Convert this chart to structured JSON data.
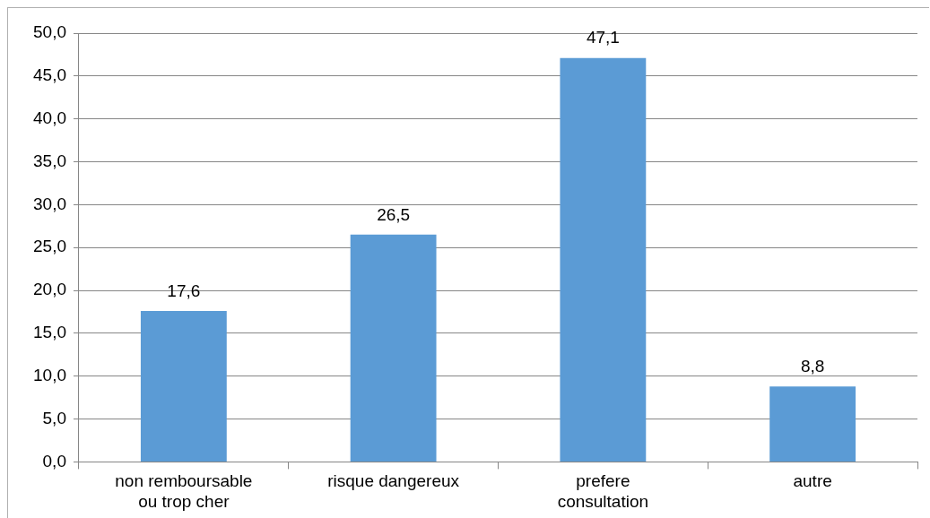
{
  "chart_data": {
    "type": "bar",
    "categories": [
      "non remboursable ou trop cher",
      "risque dangereux",
      "prefere consultation",
      "autre"
    ],
    "values": [
      17.6,
      26.5,
      47.1,
      8.8
    ],
    "value_labels": [
      "17,6",
      "26,5",
      "47,1",
      "8,8"
    ],
    "color": "#5b9bd5",
    "ylim": [
      0,
      50
    ],
    "yticks": [
      {
        "value": 0,
        "label": "0,0"
      },
      {
        "value": 5,
        "label": "5,0"
      },
      {
        "value": 10,
        "label": "10,0"
      },
      {
        "value": 15,
        "label": "15,0"
      },
      {
        "value": 20,
        "label": "20,0"
      },
      {
        "value": 25,
        "label": "25,0"
      },
      {
        "value": 30,
        "label": "30,0"
      },
      {
        "value": 35,
        "label": "35,0"
      },
      {
        "value": 40,
        "label": "40,0"
      },
      {
        "value": 45,
        "label": "45,0"
      },
      {
        "value": 50,
        "label": "50,0"
      }
    ],
    "grid": "y",
    "legend": false
  }
}
